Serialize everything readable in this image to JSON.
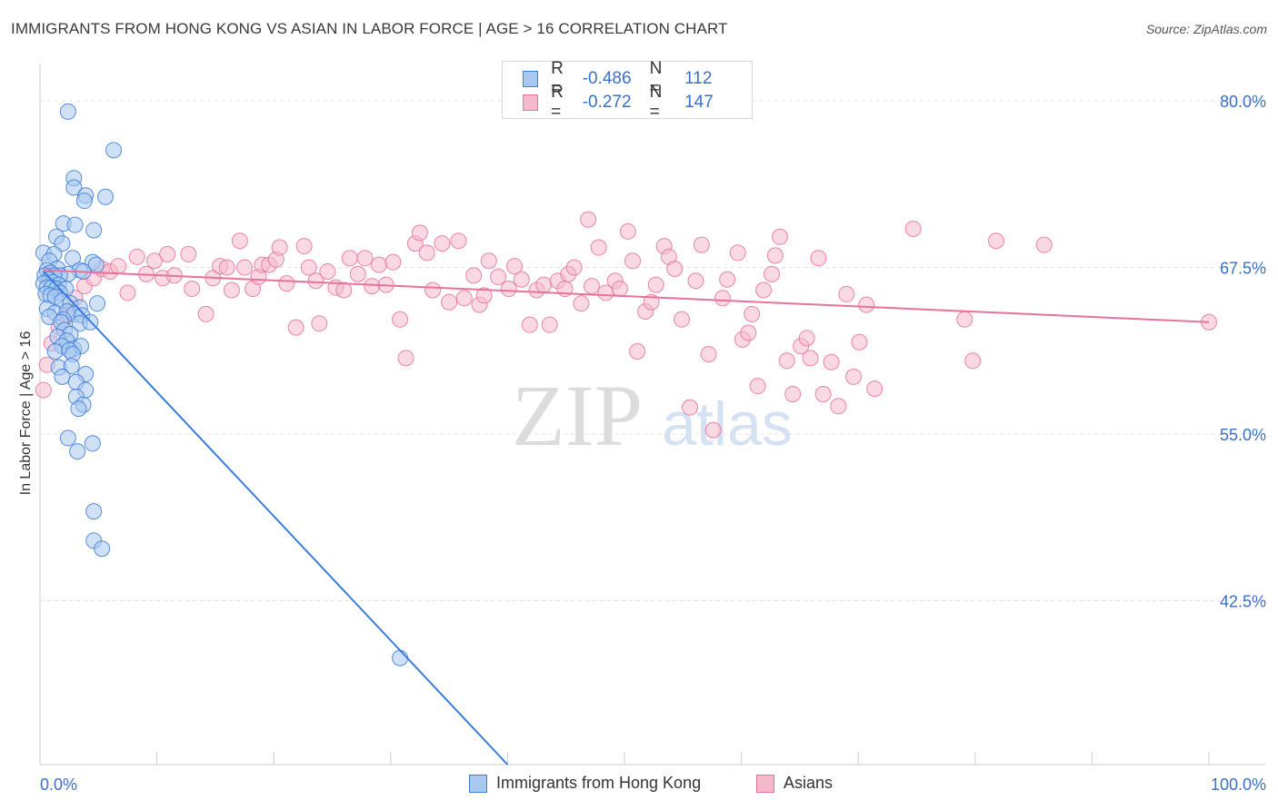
{
  "header": {
    "title": "IMMIGRANTS FROM HONG KONG VS ASIAN IN LABOR FORCE | AGE > 16 CORRELATION CHART",
    "source": "Source: ZipAtlas.com"
  },
  "watermark": {
    "zip": "ZIP",
    "atlas": "atlas"
  },
  "colors": {
    "blue": "#3b7dd8",
    "blue_fill": "#a9c8f0",
    "pink": "#e8729a",
    "pink_fill": "#f5b9cc",
    "axis_text": "#3b6fc9"
  },
  "legend_top": {
    "rows": [
      {
        "r_label": "R =",
        "r_value": "-0.486",
        "n_label": "N =",
        "n_value": "112",
        "color": "blue"
      },
      {
        "r_label": "R =",
        "r_value": "-0.272",
        "n_label": "N =",
        "n_value": "147",
        "color": "pink"
      }
    ]
  },
  "legend_bottom": {
    "items": [
      "Immigrants from Hong Kong",
      "Asians"
    ]
  },
  "chart_data": {
    "type": "scatter",
    "title": "IMMIGRANTS FROM HONG KONG VS ASIAN IN LABOR FORCE | AGE > 16 CORRELATION CHART",
    "xlabel": "",
    "ylabel": "In Labor Force | Age > 16",
    "xlim": [
      0,
      100
    ],
    "ylim": [
      30.2,
      82.8
    ],
    "x_tick_labels": [
      "0.0%",
      "100.0%"
    ],
    "y_ticks": [
      42.5,
      55.0,
      67.5,
      80.0
    ],
    "y_tick_labels": [
      "42.5%",
      "55.0%",
      "67.5%",
      "80.0%"
    ],
    "grid": true,
    "legend_position": "top-center",
    "series": [
      {
        "name": "Immigrants from Hong Kong",
        "color": "blue",
        "R": -0.486,
        "N": 112,
        "trend": {
          "x": [
            0.3,
            40.0
          ],
          "y": [
            67.2,
            30.2
          ]
        },
        "points": [
          [
            2.4,
            79.2
          ],
          [
            6.3,
            76.3
          ],
          [
            2.9,
            74.2
          ],
          [
            2.9,
            73.5
          ],
          [
            3.9,
            72.9
          ],
          [
            5.6,
            72.8
          ],
          [
            3.8,
            72.5
          ],
          [
            2.0,
            70.8
          ],
          [
            3.0,
            70.7
          ],
          [
            4.6,
            70.3
          ],
          [
            1.4,
            69.8
          ],
          [
            1.9,
            69.3
          ],
          [
            0.3,
            68.6
          ],
          [
            1.2,
            68.5
          ],
          [
            2.8,
            68.2
          ],
          [
            0.8,
            68.0
          ],
          [
            4.5,
            67.9
          ],
          [
            4.8,
            67.7
          ],
          [
            1.5,
            67.4
          ],
          [
            3.4,
            67.3
          ],
          [
            3.7,
            67.2
          ],
          [
            0.6,
            67.3
          ],
          [
            2.4,
            67.0
          ],
          [
            0.9,
            67.1
          ],
          [
            1.7,
            66.9
          ],
          [
            1.2,
            66.9
          ],
          [
            0.4,
            66.9
          ],
          [
            0.8,
            66.6
          ],
          [
            1.1,
            66.4
          ],
          [
            1.6,
            66.2
          ],
          [
            0.3,
            66.3
          ],
          [
            0.6,
            66.0
          ],
          [
            1.0,
            66.0
          ],
          [
            1.4,
            65.9
          ],
          [
            2.2,
            65.9
          ],
          [
            1.7,
            65.6
          ],
          [
            0.5,
            65.5
          ],
          [
            0.9,
            65.4
          ],
          [
            1.3,
            65.3
          ],
          [
            1.9,
            65.0
          ],
          [
            2.6,
            64.8
          ],
          [
            3.4,
            64.5
          ],
          [
            4.9,
            64.8
          ],
          [
            0.6,
            64.4
          ],
          [
            1.3,
            64.1
          ],
          [
            2.3,
            64.2
          ],
          [
            2.9,
            64.0
          ],
          [
            3.6,
            63.9
          ],
          [
            0.8,
            63.8
          ],
          [
            2.0,
            63.6
          ],
          [
            1.8,
            63.4
          ],
          [
            3.4,
            63.3
          ],
          [
            4.3,
            63.4
          ],
          [
            2.1,
            62.8
          ],
          [
            2.6,
            62.5
          ],
          [
            1.5,
            62.3
          ],
          [
            2.3,
            62.0
          ],
          [
            1.9,
            61.6
          ],
          [
            2.9,
            61.4
          ],
          [
            3.5,
            61.6
          ],
          [
            1.3,
            61.2
          ],
          [
            2.5,
            61.3
          ],
          [
            2.8,
            61.0
          ],
          [
            1.6,
            60.0
          ],
          [
            2.7,
            60.1
          ],
          [
            3.9,
            59.5
          ],
          [
            1.9,
            59.3
          ],
          [
            3.1,
            58.9
          ],
          [
            3.9,
            58.3
          ],
          [
            3.1,
            57.8
          ],
          [
            3.7,
            57.2
          ],
          [
            3.3,
            56.9
          ],
          [
            2.4,
            54.7
          ],
          [
            4.5,
            54.3
          ],
          [
            3.2,
            53.7
          ],
          [
            4.6,
            49.2
          ],
          [
            4.6,
            47.0
          ],
          [
            5.3,
            46.4
          ],
          [
            30.8,
            38.2
          ]
        ]
      },
      {
        "name": "Asians",
        "color": "pink",
        "R": -0.272,
        "N": 147,
        "trend": {
          "x": [
            0.3,
            100.0
          ],
          "y": [
            67.3,
            63.4
          ]
        },
        "points": [
          [
            0.3,
            58.3
          ],
          [
            0.6,
            60.2
          ],
          [
            1.0,
            61.8
          ],
          [
            1.6,
            63.0
          ],
          [
            2.3,
            64.0
          ],
          [
            3.0,
            65.2
          ],
          [
            3.8,
            66.1
          ],
          [
            4.6,
            66.7
          ],
          [
            5.3,
            67.4
          ],
          [
            6.0,
            67.2
          ],
          [
            6.7,
            67.6
          ],
          [
            7.5,
            65.6
          ],
          [
            8.3,
            68.3
          ],
          [
            9.1,
            67.0
          ],
          [
            9.8,
            68.0
          ],
          [
            10.5,
            66.7
          ],
          [
            10.9,
            68.5
          ],
          [
            11.5,
            66.9
          ],
          [
            12.7,
            68.5
          ],
          [
            13.0,
            65.9
          ],
          [
            14.2,
            64.0
          ],
          [
            14.8,
            66.7
          ],
          [
            15.4,
            67.6
          ],
          [
            16.0,
            67.5
          ],
          [
            16.4,
            65.8
          ],
          [
            17.1,
            69.5
          ],
          [
            17.5,
            67.5
          ],
          [
            18.2,
            65.9
          ],
          [
            18.7,
            66.8
          ],
          [
            19.0,
            67.7
          ],
          [
            19.6,
            67.7
          ],
          [
            20.2,
            68.1
          ],
          [
            20.5,
            69.0
          ],
          [
            21.1,
            66.3
          ],
          [
            21.9,
            63.0
          ],
          [
            22.6,
            69.1
          ],
          [
            23.0,
            67.5
          ],
          [
            23.6,
            66.5
          ],
          [
            23.9,
            63.3
          ],
          [
            24.6,
            67.2
          ],
          [
            25.3,
            66.0
          ],
          [
            26.0,
            65.8
          ],
          [
            26.5,
            68.2
          ],
          [
            27.2,
            67.0
          ],
          [
            27.8,
            68.2
          ],
          [
            28.4,
            66.1
          ],
          [
            29.0,
            67.7
          ],
          [
            29.6,
            66.2
          ],
          [
            30.2,
            67.9
          ],
          [
            30.8,
            63.6
          ],
          [
            31.3,
            60.7
          ],
          [
            32.1,
            69.3
          ],
          [
            32.5,
            70.1
          ],
          [
            33.1,
            68.6
          ],
          [
            33.6,
            65.8
          ],
          [
            34.4,
            69.3
          ],
          [
            35.0,
            64.9
          ],
          [
            35.8,
            69.5
          ],
          [
            36.3,
            65.2
          ],
          [
            37.1,
            66.9
          ],
          [
            37.6,
            64.7
          ],
          [
            38.0,
            65.4
          ],
          [
            38.4,
            68.0
          ],
          [
            39.2,
            66.8
          ],
          [
            40.1,
            65.9
          ],
          [
            40.6,
            67.6
          ],
          [
            41.2,
            66.6
          ],
          [
            41.9,
            63.2
          ],
          [
            42.5,
            65.8
          ],
          [
            43.1,
            66.2
          ],
          [
            43.6,
            63.2
          ],
          [
            44.3,
            66.5
          ],
          [
            44.9,
            65.9
          ],
          [
            45.2,
            67.0
          ],
          [
            45.7,
            67.5
          ],
          [
            46.3,
            64.8
          ],
          [
            46.9,
            71.1
          ],
          [
            47.2,
            66.1
          ],
          [
            47.8,
            69.0
          ],
          [
            48.4,
            65.6
          ],
          [
            49.2,
            66.5
          ],
          [
            49.6,
            65.9
          ],
          [
            50.3,
            70.2
          ],
          [
            50.7,
            68.0
          ],
          [
            51.1,
            61.2
          ],
          [
            51.8,
            64.2
          ],
          [
            52.3,
            64.9
          ],
          [
            52.7,
            66.2
          ],
          [
            53.4,
            69.1
          ],
          [
            53.8,
            68.3
          ],
          [
            54.3,
            67.4
          ],
          [
            54.9,
            63.6
          ],
          [
            55.6,
            57.0
          ],
          [
            56.1,
            66.5
          ],
          [
            56.6,
            69.2
          ],
          [
            57.2,
            61.0
          ],
          [
            57.6,
            55.3
          ],
          [
            58.4,
            65.2
          ],
          [
            58.8,
            66.6
          ],
          [
            59.7,
            68.6
          ],
          [
            60.1,
            62.1
          ],
          [
            60.6,
            62.6
          ],
          [
            60.9,
            64.0
          ],
          [
            61.4,
            58.6
          ],
          [
            61.9,
            65.8
          ],
          [
            62.6,
            67.0
          ],
          [
            62.9,
            68.4
          ],
          [
            63.3,
            69.8
          ],
          [
            63.9,
            60.5
          ],
          [
            64.4,
            58.0
          ],
          [
            65.1,
            61.6
          ],
          [
            65.6,
            62.2
          ],
          [
            65.9,
            60.7
          ],
          [
            66.6,
            68.2
          ],
          [
            67.0,
            58.0
          ],
          [
            67.7,
            60.4
          ],
          [
            68.3,
            57.1
          ],
          [
            69.0,
            65.5
          ],
          [
            69.6,
            59.3
          ],
          [
            70.1,
            61.9
          ],
          [
            70.7,
            64.7
          ],
          [
            71.4,
            58.4
          ],
          [
            74.7,
            70.4
          ],
          [
            79.1,
            63.6
          ],
          [
            79.8,
            60.5
          ],
          [
            81.8,
            69.5
          ],
          [
            85.9,
            69.2
          ],
          [
            100.0,
            63.4
          ]
        ]
      }
    ]
  }
}
